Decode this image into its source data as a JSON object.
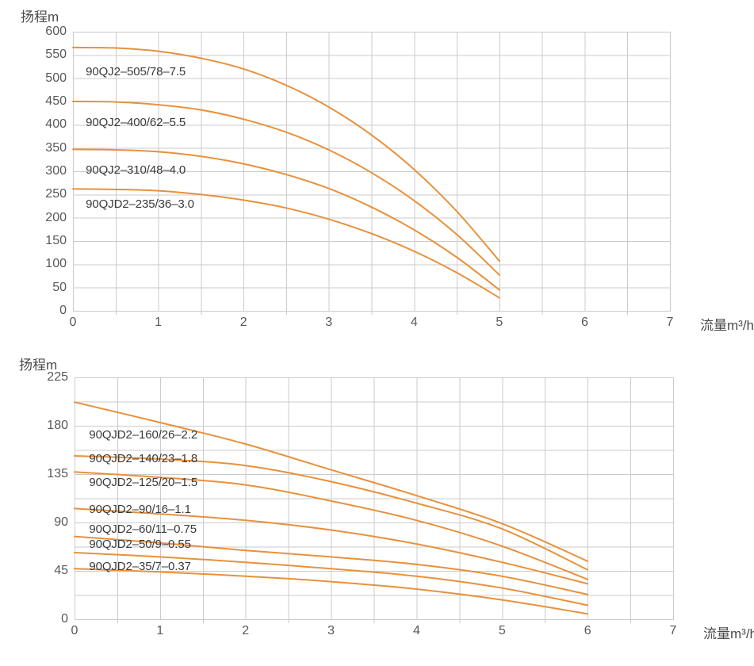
{
  "colors": {
    "background": "#ffffff",
    "curve": "#E8913C",
    "grid": "#CBCBCB",
    "tick_text": "#58585a",
    "axis_title_text": "#4a4a4a",
    "curve_label_text": "#3a3a3a"
  },
  "chart_data": [
    {
      "type": "line",
      "title": "",
      "y_axis_title": "扬程m",
      "x_axis_title": "流量m³/h",
      "xlim": [
        0,
        7
      ],
      "ylim": [
        0,
        600
      ],
      "x_major_ticks": [
        0,
        1,
        2,
        3,
        4,
        5,
        6,
        7
      ],
      "y_major_ticks": [
        600,
        550,
        500,
        450,
        400,
        350,
        300,
        250,
        200,
        150,
        100,
        50,
        0
      ],
      "x_grid_step": 0.5,
      "y_grid_step": 50,
      "grid": true,
      "legend": "inline-curve-labels",
      "series": [
        {
          "name": "90QJ2–505/78–7.5",
          "label_x": 0.15,
          "label_y": 513,
          "x": [
            0,
            0.5,
            1,
            1.5,
            2,
            2.5,
            3,
            3.5,
            4,
            4.5,
            5
          ],
          "y": [
            566,
            565,
            558,
            543,
            520,
            485,
            438,
            378,
            304,
            214,
            107
          ]
        },
        {
          "name": "90QJ2–400/62–5.5",
          "label_x": 0.15,
          "label_y": 404,
          "x": [
            0,
            0.5,
            1,
            1.5,
            2,
            2.5,
            3,
            3.5,
            4,
            4.5,
            5
          ],
          "y": [
            450,
            449,
            443,
            432,
            412,
            384,
            346,
            297,
            237,
            164,
            77
          ]
        },
        {
          "name": "90QJ2–310/48–4.0",
          "label_x": 0.15,
          "label_y": 302,
          "x": [
            0,
            0.5,
            1,
            1.5,
            2,
            2.5,
            3,
            3.5,
            4,
            4.5,
            5
          ],
          "y": [
            347,
            346,
            342,
            332,
            316,
            293,
            263,
            223,
            174,
            115,
            45
          ]
        },
        {
          "name": "90QJD2–235/36–3.0",
          "label_x": 0.15,
          "label_y": 228,
          "x": [
            0,
            0.5,
            1,
            1.5,
            2,
            2.5,
            3,
            3.5,
            4,
            4.5,
            5
          ],
          "y": [
            262,
            261,
            258,
            250,
            238,
            221,
            197,
            166,
            128,
            82,
            28
          ]
        }
      ]
    },
    {
      "type": "line",
      "title": "",
      "y_axis_title": "扬程m",
      "x_axis_title": "流量m³/h",
      "xlim": [
        0,
        7
      ],
      "ylim": [
        0,
        225
      ],
      "x_major_ticks": [
        0,
        1,
        2,
        3,
        4,
        5,
        6,
        7
      ],
      "y_major_ticks": [
        225,
        180,
        135,
        90,
        45,
        0
      ],
      "x_grid_step": 0.5,
      "y_grid_step": 22.5,
      "grid": true,
      "legend": "inline-curve-labels",
      "series": [
        {
          "name": "90QJD2–160/26–2.2",
          "label_x": 0.17,
          "label_y": 171,
          "x": [
            0,
            1,
            2,
            3,
            4,
            5,
            6
          ],
          "y": [
            202,
            183,
            163,
            139,
            115,
            89,
            54
          ]
        },
        {
          "name": "90QJD2–140/23–1.8",
          "label_x": 0.17,
          "label_y": 149,
          "x": [
            0,
            1,
            2,
            3,
            4,
            5,
            6
          ],
          "y": [
            152,
            149,
            143,
            128,
            108,
            84,
            46
          ]
        },
        {
          "name": "90QJD2–125/20–1.5",
          "label_x": 0.17,
          "label_y": 127,
          "x": [
            0,
            1,
            2,
            3,
            4,
            5,
            6
          ],
          "y": [
            137,
            132,
            125,
            110,
            92,
            68,
            37
          ]
        },
        {
          "name": "90QJD2–90/16–1.1",
          "label_x": 0.17,
          "label_y": 102,
          "x": [
            0,
            1,
            2,
            3,
            4,
            5,
            6
          ],
          "y": [
            103,
            98,
            92,
            83,
            70,
            53,
            33
          ]
        },
        {
          "name": "90QJD2–60/11–0.75",
          "label_x": 0.17,
          "label_y": 83,
          "x": [
            0,
            1,
            2,
            3,
            4,
            5,
            6
          ],
          "y": [
            77,
            71,
            64,
            58,
            51,
            40,
            23
          ]
        },
        {
          "name": "90QJD2–50/9–0.55",
          "label_x": 0.17,
          "label_y": 69,
          "x": [
            0,
            1,
            2,
            3,
            4,
            5,
            6
          ],
          "y": [
            62,
            58,
            53,
            47,
            40,
            29,
            13
          ]
        },
        {
          "name": "90QJD2–35/7–0.37",
          "label_x": 0.17,
          "label_y": 49,
          "x": [
            0,
            1,
            2,
            3,
            4,
            5,
            6
          ],
          "y": [
            47,
            44,
            40,
            35,
            28,
            18,
            5
          ]
        }
      ]
    }
  ]
}
